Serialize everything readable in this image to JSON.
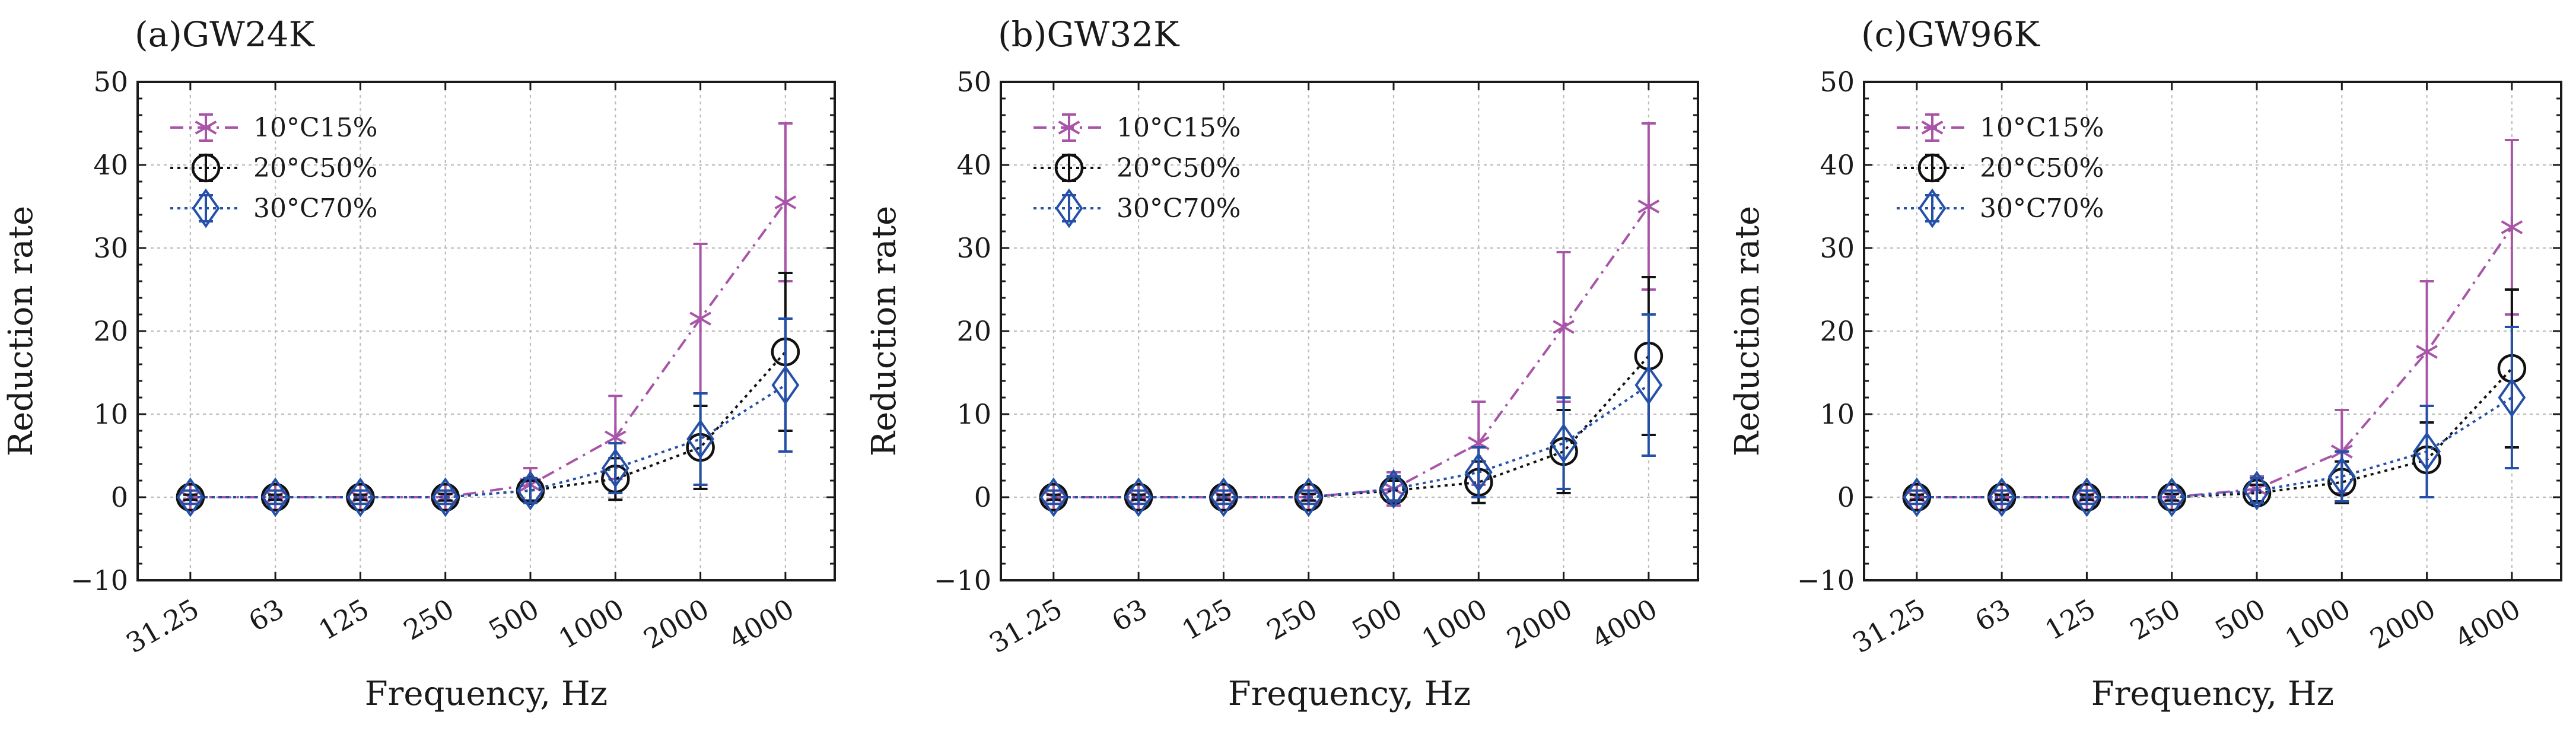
{
  "chart_data": [
    {
      "type": "line",
      "title": "(a)GW24K",
      "xlabel": "Frequency, Hz",
      "ylabel": "Reduction rate",
      "categories": [
        "31.25",
        "63",
        "125",
        "250",
        "500",
        "1000",
        "2000",
        "4000"
      ],
      "ylim": [
        -10,
        50
      ],
      "yticks": [
        "−10",
        "0",
        "10",
        "20",
        "30",
        "40",
        "50"
      ],
      "grid": true,
      "legend_position": "top-left",
      "series": [
        {
          "name": "10°C15%",
          "color": "#a855a8",
          "marker": "asterisk",
          "line_style": "dash-dot",
          "values": [
            0,
            0,
            0,
            0,
            1.5,
            7.2,
            21.5,
            35.5
          ],
          "errors": [
            0.3,
            0.3,
            0.3,
            0.4,
            2.0,
            5.0,
            9.0,
            9.5
          ]
        },
        {
          "name": "20°C50%",
          "color": "#111111",
          "marker": "circle",
          "line_style": "dotted",
          "values": [
            0,
            0,
            0,
            0,
            0.8,
            2.2,
            6.0,
            17.5
          ],
          "errors": [
            0.3,
            0.3,
            0.3,
            0.4,
            1.2,
            2.5,
            5.0,
            9.5
          ]
        },
        {
          "name": "30°C70%",
          "color": "#2450a8",
          "marker": "diamond",
          "line_style": "dotted",
          "values": [
            0,
            0,
            0,
            0,
            0.8,
            3.5,
            7.0,
            13.5
          ],
          "errors": [
            0.8,
            0.8,
            0.8,
            0.8,
            1.5,
            3.0,
            5.5,
            8.0
          ]
        }
      ]
    },
    {
      "type": "line",
      "title": "(b)GW32K",
      "xlabel": "Frequency, Hz",
      "ylabel": "Reduction rate",
      "categories": [
        "31.25",
        "63",
        "125",
        "250",
        "500",
        "1000",
        "2000",
        "4000"
      ],
      "ylim": [
        -10,
        50
      ],
      "yticks": [
        "−10",
        "0",
        "10",
        "20",
        "30",
        "40",
        "50"
      ],
      "grid": true,
      "legend_position": "top-left",
      "series": [
        {
          "name": "10°C15%",
          "color": "#a855a8",
          "marker": "asterisk",
          "line_style": "dash-dot",
          "values": [
            0,
            0,
            0,
            0,
            1.0,
            6.5,
            20.5,
            35.0
          ],
          "errors": [
            0.3,
            0.3,
            0.3,
            0.4,
            2.0,
            5.0,
            9.0,
            10.0
          ]
        },
        {
          "name": "20°C50%",
          "color": "#111111",
          "marker": "circle",
          "line_style": "dotted",
          "values": [
            0,
            0,
            0,
            0,
            0.8,
            1.8,
            5.5,
            17.0
          ],
          "errors": [
            0.3,
            0.3,
            0.3,
            0.4,
            1.2,
            2.5,
            5.0,
            9.5
          ]
        },
        {
          "name": "30°C70%",
          "color": "#2450a8",
          "marker": "diamond",
          "line_style": "dotted",
          "values": [
            0,
            0,
            0,
            0,
            1.0,
            3.0,
            6.5,
            13.5
          ],
          "errors": [
            0.8,
            0.8,
            0.8,
            0.8,
            1.5,
            3.0,
            5.5,
            8.5
          ]
        }
      ]
    },
    {
      "type": "line",
      "title": "(c)GW96K",
      "xlabel": "Frequency, Hz",
      "ylabel": "Reduction rate",
      "categories": [
        "31.25",
        "63",
        "125",
        "250",
        "500",
        "1000",
        "2000",
        "4000"
      ],
      "ylim": [
        -10,
        50
      ],
      "yticks": [
        "−10",
        "0",
        "10",
        "20",
        "30",
        "40",
        "50"
      ],
      "grid": true,
      "legend_position": "top-left",
      "series": [
        {
          "name": "10°C15%",
          "color": "#a855a8",
          "marker": "asterisk",
          "line_style": "dash-dot",
          "values": [
            0,
            0,
            0,
            0,
            1.0,
            5.5,
            17.5,
            32.5
          ],
          "errors": [
            0.3,
            0.3,
            0.3,
            0.4,
            1.5,
            5.0,
            8.5,
            10.5
          ]
        },
        {
          "name": "20°C50%",
          "color": "#111111",
          "marker": "circle",
          "line_style": "dotted",
          "values": [
            0,
            0,
            0,
            0,
            0.5,
            1.8,
            4.5,
            15.5
          ],
          "errors": [
            0.3,
            0.3,
            0.3,
            0.4,
            1.0,
            2.5,
            4.5,
            9.5
          ]
        },
        {
          "name": "30°C70%",
          "color": "#2450a8",
          "marker": "diamond",
          "line_style": "dotted",
          "values": [
            0,
            0,
            0,
            0,
            0.8,
            2.5,
            5.5,
            12.0
          ],
          "errors": [
            0.8,
            0.8,
            0.8,
            0.8,
            1.5,
            3.0,
            5.5,
            8.5
          ]
        }
      ]
    }
  ]
}
